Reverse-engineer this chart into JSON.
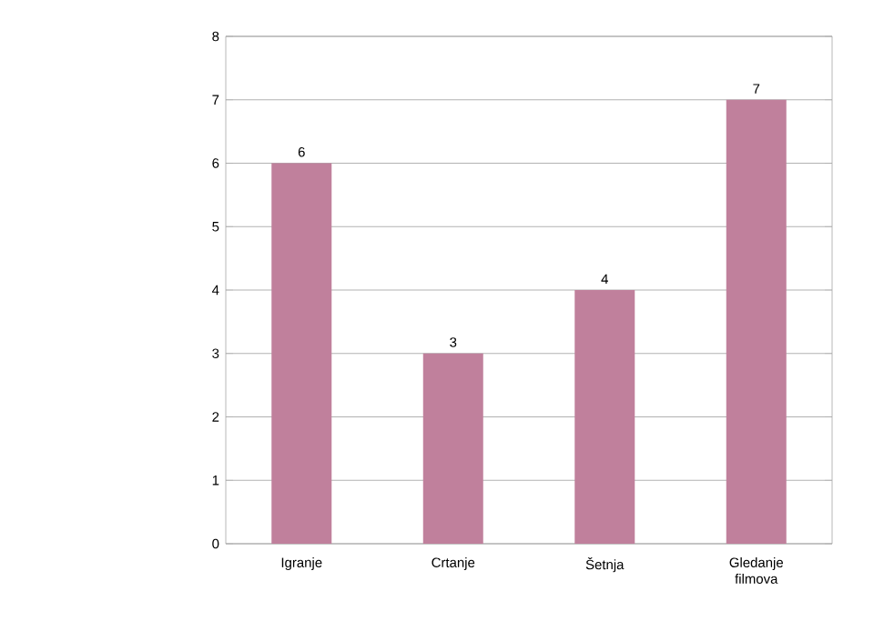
{
  "chart_data": {
    "type": "bar",
    "categories": [
      "Igranje",
      "Crtanje",
      "Šetnja",
      "Gledanje filmova"
    ],
    "values": [
      6,
      3,
      4,
      7
    ],
    "color": "#c0809c",
    "ylim": [
      0,
      8
    ],
    "yticks": [
      0,
      1,
      2,
      3,
      4,
      5,
      6,
      7,
      8
    ],
    "grid": "y",
    "data_labels": true
  }
}
